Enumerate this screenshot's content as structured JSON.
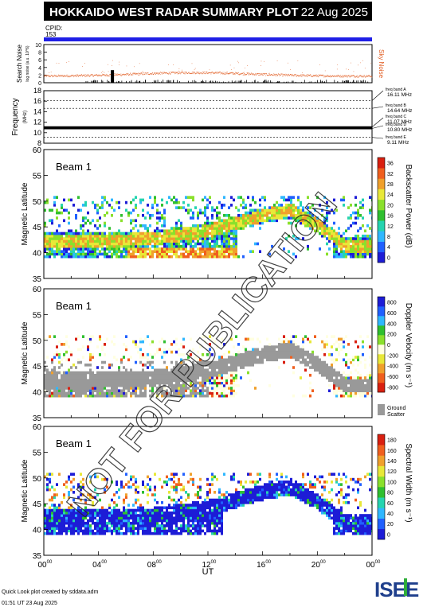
{
  "header": {
    "title": "HOKKAIDO WEST RADAR SUMMARY PLOT",
    "date": "22 Aug 2025",
    "cpid_label": "CPID:",
    "cpid_value": "153"
  },
  "noise_panel": {
    "ylabel": "Search Noise",
    "ylabel_sub": "log noise (a.u. 10^6)",
    "right_label": "Sky Noise",
    "yticks": [
      "0",
      "2",
      "4",
      "6",
      "8",
      "10"
    ],
    "ylim": [
      0,
      10
    ]
  },
  "freq_panel": {
    "ylabel": "Frequency",
    "ylabel_unit": "(MHz)",
    "yticks": [
      "8",
      "10",
      "12",
      "14",
      "16",
      "18"
    ],
    "ylim": [
      8,
      18
    ],
    "bands": [
      {
        "label": "freq band A",
        "value": "16.11 MHz",
        "freq": 16.11
      },
      {
        "label": "freq band B",
        "value": "14.64 MHz",
        "freq": 14.64
      },
      {
        "label": "freq band C",
        "value": "11.07 MHz",
        "freq": 11.07
      },
      {
        "label": "freq band D",
        "value": "10.80 MHz",
        "freq": 10.8
      },
      {
        "label": "freq band E",
        "value": "9.11 MHz",
        "freq": 9.11
      }
    ]
  },
  "panels": [
    {
      "beam": "Beam  1",
      "ylabel": "Magnetic Latitude",
      "yticks": [
        "35",
        "40",
        "45",
        "50",
        "55",
        "60"
      ],
      "ylim": [
        35,
        60
      ],
      "colorbar_label": "Backscatter Power (dB)",
      "colorbar_ticks": [
        "0",
        "4",
        "8",
        "12",
        "16",
        "20",
        "24",
        "28",
        "32",
        "36"
      ],
      "colormap": [
        "#1d1cd6",
        "#2060ff",
        "#2fb7ff",
        "#25d4b0",
        "#2fbf2f",
        "#8ae02c",
        "#e8e838",
        "#f0a02c",
        "#f05f1e",
        "#d92010"
      ]
    },
    {
      "beam": "Beam  1",
      "ylabel": "Magnetic Latitude",
      "yticks": [
        "35",
        "40",
        "45",
        "50",
        "55",
        "60"
      ],
      "ylim": [
        35,
        60
      ],
      "colorbar_label": "Doppler Velocity (m s⁻¹)",
      "colorbar_ticks": [
        "-800",
        "-600",
        "-400",
        "-200",
        "0",
        "200",
        "400",
        "600",
        "800"
      ],
      "colormap": [
        "#d92010",
        "#f05f1e",
        "#f0a02c",
        "#e8e838",
        "#ffffe0",
        "#8ae02c",
        "#2fbf2f",
        "#2fb7ff",
        "#2060ff",
        "#1d1cd6"
      ],
      "ground_scatter_label": "Ground",
      "ground_scatter_label2": "Scatter",
      "ground_scatter_color": "#999999"
    },
    {
      "beam": "Beam  1",
      "ylabel": "Magnetic Latitude",
      "yticks": [
        "35",
        "40",
        "45",
        "50",
        "55",
        "60"
      ],
      "ylim": [
        35,
        60
      ],
      "colorbar_label": "Spectral Width (m s⁻¹)",
      "colorbar_ticks": [
        "0",
        "20",
        "40",
        "60",
        "80",
        "100",
        "120",
        "140",
        "160",
        "180"
      ],
      "colormap": [
        "#1d1cd6",
        "#2060ff",
        "#2fb7ff",
        "#25d4b0",
        "#2fbf2f",
        "#8ae02c",
        "#e8e838",
        "#f0a02c",
        "#f05f1e",
        "#d92010"
      ]
    }
  ],
  "xaxis": {
    "label": "UT",
    "ticks": [
      {
        "h": "00",
        "m": "00"
      },
      {
        "h": "04",
        "m": "00"
      },
      {
        "h": "08",
        "m": "00"
      },
      {
        "h": "12",
        "m": "00"
      },
      {
        "h": "16",
        "m": "00"
      },
      {
        "h": "20",
        "m": "00"
      },
      {
        "h": "00",
        "m": "00"
      }
    ]
  },
  "watermark": "NOT FOR PUBLICATION",
  "footer": {
    "line1": "Quick Look plot created by sddata.adm",
    "line2": "01:51 UT 23 Aug 2025",
    "logo_text": "ISEE"
  },
  "chart_data": [
    {
      "type": "heatmap",
      "title": "Backscatter Power (dB)",
      "xlabel": "UT",
      "ylabel": "Magnetic Latitude",
      "xlim": [
        0,
        24
      ],
      "ylim": [
        35,
        60
      ],
      "zlim": [
        0,
        40
      ],
      "region_edges": [
        {
          "hour": 0,
          "lat_min": 39,
          "lat_max": 50.5
        },
        {
          "hour": 4,
          "lat_min": 39,
          "lat_max": 50.5
        },
        {
          "hour": 8,
          "lat_min": 39,
          "lat_max": 50.5
        },
        {
          "hour": 12,
          "lat_min": 39,
          "lat_max": 50.5
        },
        {
          "hour": 16,
          "lat_min": 39,
          "lat_max": 50.5
        },
        {
          "hour": 20,
          "lat_min": 39,
          "lat_max": 50.5
        },
        {
          "hour": 24,
          "lat_min": 39,
          "lat_max": 50.5
        }
      ],
      "arc_lat": [
        {
          "hour": 0,
          "lat": 42
        },
        {
          "hour": 4,
          "lat": 42
        },
        {
          "hour": 8,
          "lat": 42.5
        },
        {
          "hour": 12,
          "lat": 44
        },
        {
          "hour": 16,
          "lat": 47
        },
        {
          "hour": 18,
          "lat": 48
        },
        {
          "hour": 20,
          "lat": 45
        },
        {
          "hour": 22,
          "lat": 41
        },
        {
          "hour": 24,
          "lat": 41
        }
      ]
    },
    {
      "type": "heatmap",
      "title": "Doppler Velocity (m s⁻¹)",
      "xlabel": "UT",
      "ylabel": "Magnetic Latitude",
      "xlim": [
        0,
        24
      ],
      "ylim": [
        35,
        60
      ],
      "zlim": [
        -800,
        800
      ]
    },
    {
      "type": "heatmap",
      "title": "Spectral Width (m s⁻¹)",
      "xlabel": "UT",
      "ylabel": "Magnetic Latitude",
      "xlim": [
        0,
        24
      ],
      "ylim": [
        35,
        60
      ],
      "zlim": [
        0,
        200
      ]
    }
  ]
}
